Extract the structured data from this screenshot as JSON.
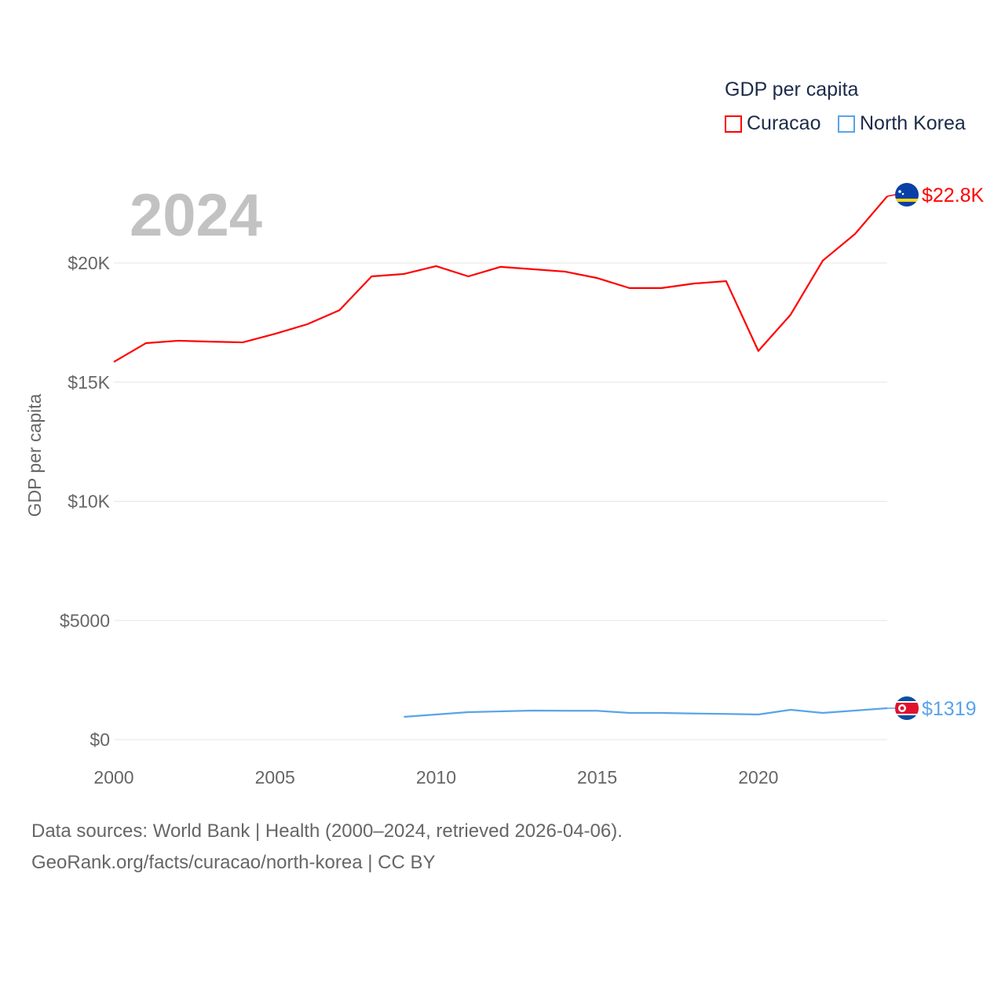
{
  "chart_data": {
    "type": "line",
    "title": "",
    "year_label": "2024",
    "xlabel": "",
    "ylabel": "GDP per capita",
    "xlim": [
      2000,
      2024
    ],
    "ylim": [
      0,
      22800
    ],
    "x_ticks": [
      "2000",
      "2005",
      "2010",
      "2015",
      "2020"
    ],
    "y_ticks": [
      {
        "v": 0,
        "label": "$0"
      },
      {
        "v": 5000,
        "label": "$5000"
      },
      {
        "v": 10000,
        "label": "$10K"
      },
      {
        "v": 15000,
        "label": "$15K"
      },
      {
        "v": 20000,
        "label": "$20K"
      }
    ],
    "grid": true,
    "legend": {
      "title": "GDP per capita",
      "placement": "top-right"
    },
    "series": [
      {
        "name": "Curacao",
        "color": "#ff0000",
        "end_label": "$22.8K",
        "flag": "curacao-flag",
        "x": [
          2000,
          2001,
          2002,
          2003,
          2004,
          2005,
          2006,
          2007,
          2008,
          2009,
          2010,
          2011,
          2012,
          2013,
          2014,
          2015,
          2016,
          2017,
          2018,
          2019,
          2020,
          2021,
          2022,
          2023,
          2024
        ],
        "values": [
          15850,
          16640,
          16740,
          16700,
          16670,
          17030,
          17430,
          18020,
          19440,
          19540,
          19870,
          19440,
          19840,
          19740,
          19640,
          19370,
          18950,
          18950,
          19140,
          19240,
          16310,
          17830,
          20100,
          21220,
          22800
        ]
      },
      {
        "name": "North Korea",
        "color": "#5aa3ea",
        "end_label": "$1319",
        "flag": "north-korea-flag",
        "x": [
          2009,
          2010,
          2011,
          2012,
          2013,
          2014,
          2015,
          2016,
          2017,
          2018,
          2019,
          2020,
          2021,
          2022,
          2023,
          2024
        ],
        "values": [
          955,
          1054,
          1153,
          1186,
          1219,
          1210,
          1210,
          1120,
          1120,
          1095,
          1080,
          1054,
          1252,
          1120,
          1219,
          1319
        ]
      }
    ]
  },
  "footer": {
    "line1": "Data sources: World Bank | Health (2000–2024, retrieved 2026-04-06).",
    "line2": "GeoRank.org/facts/curacao/north-korea | CC BY"
  }
}
